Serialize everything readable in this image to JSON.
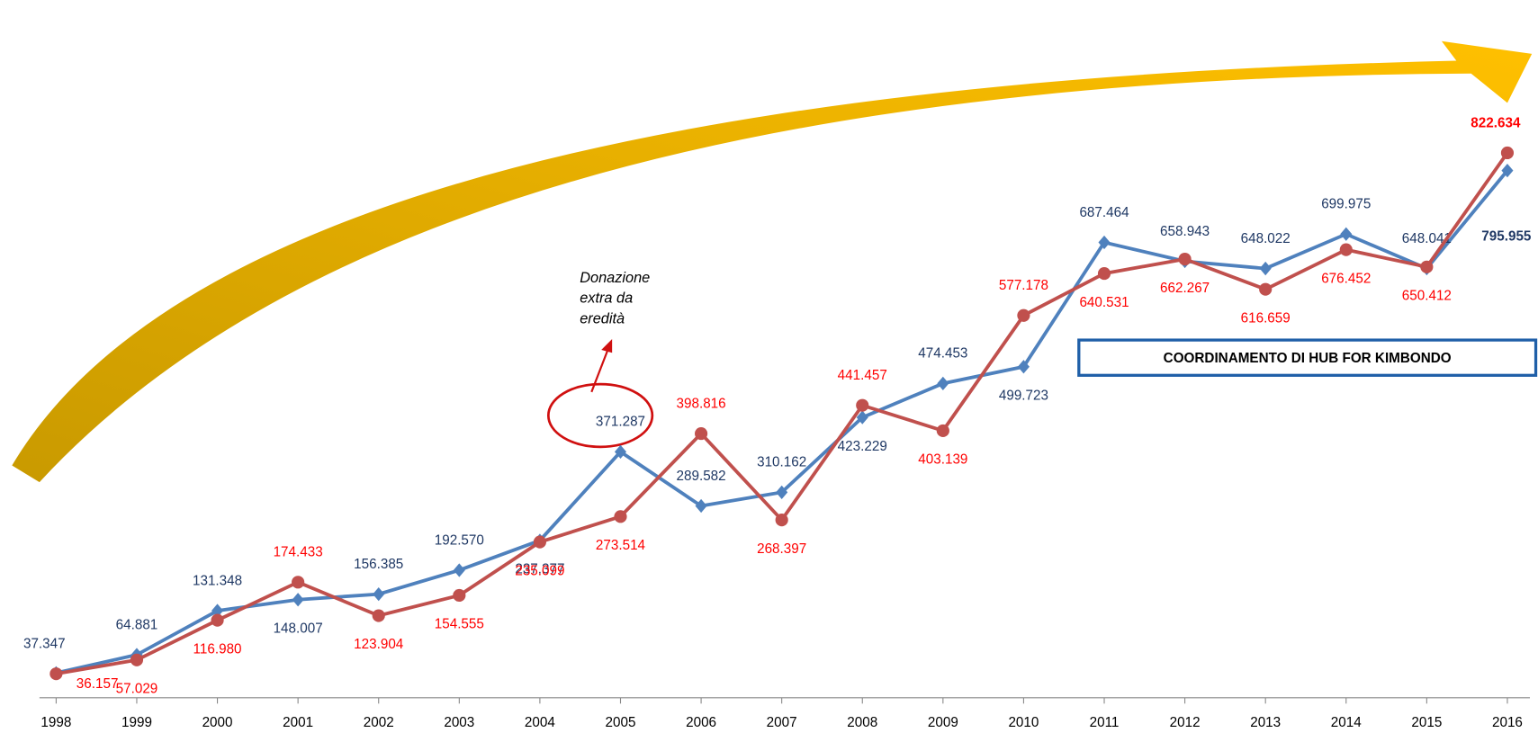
{
  "chart_data": {
    "type": "line",
    "categories": [
      "1998",
      "1999",
      "2000",
      "2001",
      "2002",
      "2003",
      "2004",
      "2005",
      "2006",
      "2007",
      "2008",
      "2009",
      "2010",
      "2011",
      "2012",
      "2013",
      "2014",
      "2015",
      "2016"
    ],
    "series": [
      {
        "color": "#4f81bd",
        "marker": "diamond",
        "label_color": "#1f3864",
        "values": [
          37347,
          64881,
          131348,
          148007,
          156385,
          192570,
          237377,
          371287,
          289582,
          310162,
          423229,
          474453,
          499723,
          687464,
          658943,
          648022,
          699975,
          648041,
          795955
        ],
        "value_labels": [
          "37.347",
          "64.881",
          "131.348",
          "148.007",
          "156.385",
          "192.570",
          "237.377",
          "371.287",
          "289.582",
          "310.162",
          "423.229",
          "474.453",
          "499.723",
          "687.464",
          "658.943",
          "648.022",
          "699.975",
          "648.041",
          "795.955"
        ]
      },
      {
        "color": "#c0504d",
        "marker": "circle",
        "label_color": "#ff0000",
        "values": [
          36157,
          57029,
          116980,
          174433,
          123904,
          154555,
          235099,
          273514,
          398816,
          268397,
          441457,
          403139,
          577178,
          640531,
          662267,
          616659,
          676452,
          650412,
          822634
        ],
        "value_labels": [
          "36.157",
          "57.029",
          "116.980",
          "174.433",
          "123.904",
          "154.555",
          "235.099",
          "273.514",
          "398.816",
          "268.397",
          "441.457",
          "403.139",
          "577.178",
          "640.531",
          "662.267",
          "616.659",
          "676.452",
          "650.412",
          "822.634"
        ]
      }
    ],
    "annotations": [
      "Donazione",
      "extra da",
      "eredità"
    ],
    "box_label": "COORDINAMENTO DI HUB FOR KIMBONDO"
  }
}
